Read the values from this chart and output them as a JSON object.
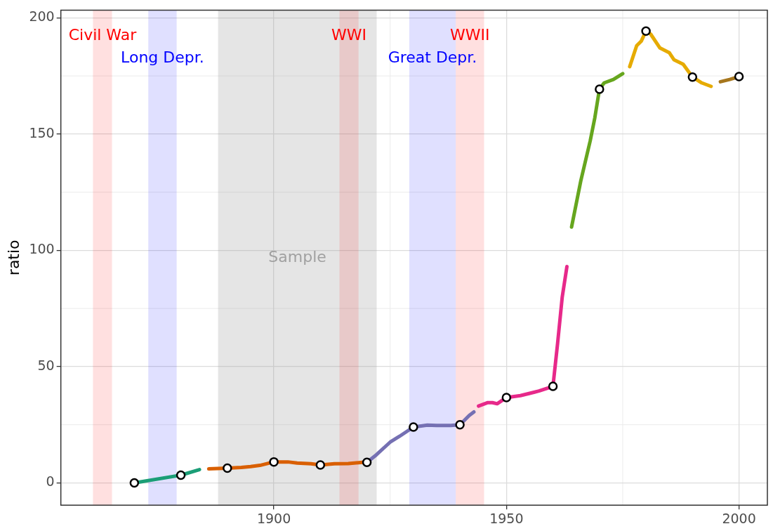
{
  "chart_data": {
    "type": "line",
    "ylabel": "ratio",
    "xlim": [
      1854.2,
      2006.1
    ],
    "xticks": [
      1900,
      1950,
      2000
    ],
    "ylim": [
      -9.6,
      203.3
    ],
    "yticks": [
      0,
      50,
      100,
      150,
      200
    ],
    "grid": true,
    "legend": false,
    "line_style": "solid",
    "marker": "none",
    "series": [
      {
        "color": "#1b9e77",
        "x": [
          1870,
          1880,
          1884
        ],
        "values": [
          0,
          3.3,
          5.7
        ]
      },
      {
        "color": "#d95f02",
        "x": [
          1886,
          1890,
          1893,
          1895,
          1897,
          1900,
          1903,
          1905,
          1908,
          1910,
          1913,
          1916,
          1919
        ],
        "values": [
          6,
          6.3,
          6.6,
          7,
          7.5,
          9,
          9,
          8.5,
          8.2,
          7.7,
          8.2,
          8.3,
          8.8
        ]
      },
      {
        "color": "#7570b3",
        "x": [
          1920,
          1922,
          1925,
          1927,
          1930,
          1933,
          1935,
          1938,
          1940,
          1942,
          1943
        ],
        "values": [
          8.8,
          12,
          17.5,
          20,
          24,
          24.8,
          24.7,
          24.7,
          25,
          29,
          30.5
        ]
      },
      {
        "color": "#e7298a",
        "x": [
          1944,
          1946,
          1947,
          1948,
          1950,
          1953,
          1955,
          1957,
          1960,
          1961,
          1962,
          1963
        ],
        "values": [
          33,
          34.5,
          34.5,
          34,
          36.7,
          37.5,
          38.5,
          39.5,
          41.5,
          60,
          80,
          93
        ]
      },
      {
        "color": "#66a61e",
        "x": [
          1964,
          1966,
          1968,
          1969,
          1970,
          1971,
          1973,
          1975
        ],
        "values": [
          110,
          130,
          147,
          157,
          169.3,
          172,
          173.5,
          176
        ]
      },
      {
        "color": "#e6ab02",
        "x": [
          1976.5,
          1978,
          1979,
          1980,
          1981,
          1983,
          1985,
          1986,
          1988,
          1990,
          1992,
          1994
        ],
        "values": [
          179,
          188,
          190,
          194.3,
          193,
          187,
          185,
          182,
          180,
          174.5,
          172,
          170.5
        ]
      },
      {
        "color": "#a6761d",
        "x": [
          1996,
          1998,
          2000
        ],
        "values": [
          172.5,
          173.5,
          174.7
        ]
      },
      {
        "type": "scatter",
        "marker": "circle",
        "color": "#000000",
        "x": [
          1870,
          1880,
          1890,
          1900,
          1910,
          1920,
          1930,
          1940,
          1950,
          1960,
          1970,
          1980,
          1990,
          2000
        ],
        "values": [
          0,
          3.3,
          6.3,
          9,
          7.7,
          8.8,
          24,
          25,
          36.7,
          41.5,
          169.3,
          194.3,
          174.5,
          174.7
        ]
      }
    ],
    "bands": [
      {
        "axis": "x",
        "from": 1861.1,
        "to": 1865.2,
        "label": "Civil War",
        "color": "#ff0000"
      },
      {
        "axis": "x",
        "from": 1873,
        "to": 1879.1,
        "label": "Long Depr.",
        "color": "#0000ff"
      },
      {
        "axis": "x",
        "from": 1888,
        "to": 1922.1,
        "label": "Sample",
        "color": "#999999"
      },
      {
        "axis": "x",
        "from": 1914.1,
        "to": 1918.2,
        "label": "WWI",
        "color": "#ff0000"
      },
      {
        "axis": "x",
        "from": 1929.1,
        "to": 1939.1,
        "label": "Great Depr.",
        "color": "#0000ff"
      },
      {
        "axis": "x",
        "from": 1939.1,
        "to": 1945.2,
        "label": "WWII",
        "color": "#ff0000"
      }
    ]
  }
}
